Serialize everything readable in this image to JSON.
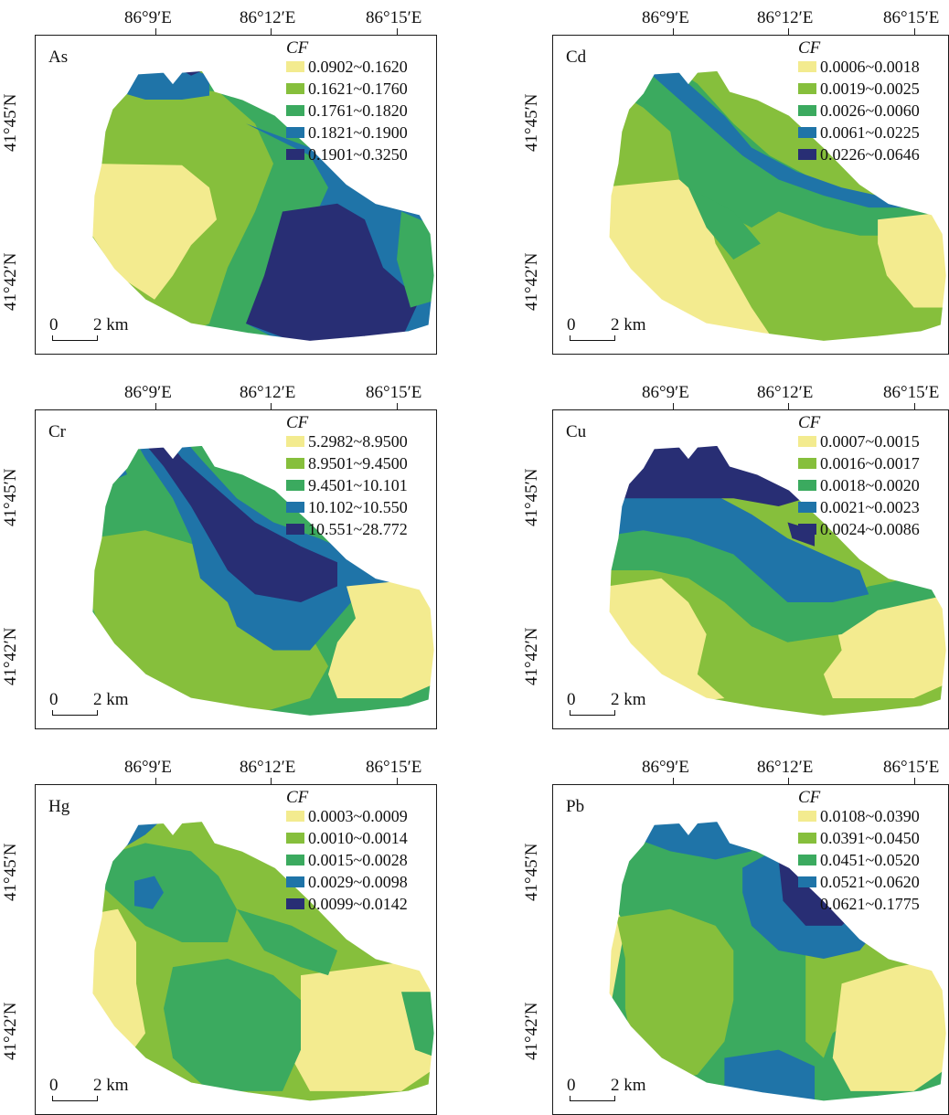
{
  "colors": {
    "c1": "#F3EB8F",
    "c2": "#86BF3C",
    "c3": "#3BAA5F",
    "c4": "#1F74A8",
    "c5": "#282E74",
    "frame": "#1a1a1a"
  },
  "lon_ticks": [
    "86°9′E",
    "86°12′E",
    "86°15′E"
  ],
  "lat_ticks": [
    "41°45′N",
    "41°42′N"
  ],
  "scale": {
    "zero": "0",
    "km": "2 km"
  },
  "legend_title": "CF",
  "panels": [
    {
      "element": "As",
      "classes": [
        "0.0902~0.1620",
        "0.1621~0.1760",
        "0.1761~0.1820",
        "0.1821~0.1900",
        "0.1901~0.3250"
      ]
    },
    {
      "element": "Cd",
      "classes": [
        "0.0006~0.0018",
        "0.0019~0.0025",
        "0.0026~0.0060",
        "0.0061~0.0225",
        "0.0226~0.0646"
      ]
    },
    {
      "element": "Cr",
      "classes": [
        "5.2982~8.9500",
        "8.9501~9.4500",
        "9.4501~10.101",
        "10.102~10.550",
        "10.551~28.772"
      ]
    },
    {
      "element": "Cu",
      "classes": [
        "0.0007~0.0015",
        "0.0016~0.0017",
        "0.0018~0.0020",
        "0.0021~0.0023",
        "0.0024~0.0086"
      ]
    },
    {
      "element": "Hg",
      "classes": [
        "0.0003~0.0009",
        "0.0010~0.0014",
        "0.0015~0.0028",
        "0.0029~0.0098",
        "0.0099~0.0142"
      ]
    },
    {
      "element": "Pb",
      "classes": [
        "0.0108~0.0390",
        "0.0391~0.0450",
        "0.0451~0.0520",
        "0.0521~0.0620",
        "0.0621~0.1775"
      ]
    }
  ]
}
